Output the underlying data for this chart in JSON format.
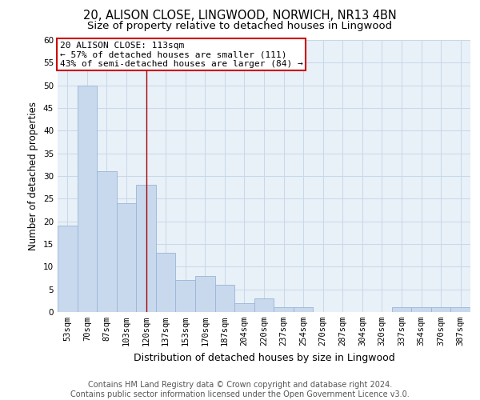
{
  "title_line1": "20, ALISON CLOSE, LINGWOOD, NORWICH, NR13 4BN",
  "title_line2": "Size of property relative to detached houses in Lingwood",
  "xlabel": "Distribution of detached houses by size in Lingwood",
  "ylabel": "Number of detached properties",
  "categories": [
    "53sqm",
    "70sqm",
    "87sqm",
    "103sqm",
    "120sqm",
    "137sqm",
    "153sqm",
    "170sqm",
    "187sqm",
    "204sqm",
    "220sqm",
    "237sqm",
    "254sqm",
    "270sqm",
    "287sqm",
    "304sqm",
    "320sqm",
    "337sqm",
    "354sqm",
    "370sqm",
    "387sqm"
  ],
  "values": [
    19,
    50,
    31,
    24,
    28,
    13,
    7,
    8,
    6,
    2,
    3,
    1,
    1,
    0,
    0,
    0,
    0,
    1,
    1,
    1,
    1
  ],
  "bar_color": "#c8d9ee",
  "bar_edge_color": "#9ab5d5",
  "ylim": [
    0,
    60
  ],
  "yticks": [
    0,
    5,
    10,
    15,
    20,
    25,
    30,
    35,
    40,
    45,
    50,
    55,
    60
  ],
  "annotation_box_text": "20 ALISON CLOSE: 113sqm\n← 57% of detached houses are smaller (111)\n43% of semi-detached houses are larger (84) →",
  "annotation_box_color": "#ffffff",
  "annotation_box_edgecolor": "#cc0000",
  "vline_x": 4.0,
  "vline_color": "#aa0000",
  "grid_color": "#c8d8e8",
  "background_color": "#e8f0f8",
  "footer_line1": "Contains HM Land Registry data © Crown copyright and database right 2024.",
  "footer_line2": "Contains public sector information licensed under the Open Government Licence v3.0.",
  "title_fontsize": 10.5,
  "subtitle_fontsize": 9.5,
  "xlabel_fontsize": 9,
  "ylabel_fontsize": 8.5,
  "tick_fontsize": 7.5,
  "annotation_fontsize": 8,
  "footer_fontsize": 7
}
